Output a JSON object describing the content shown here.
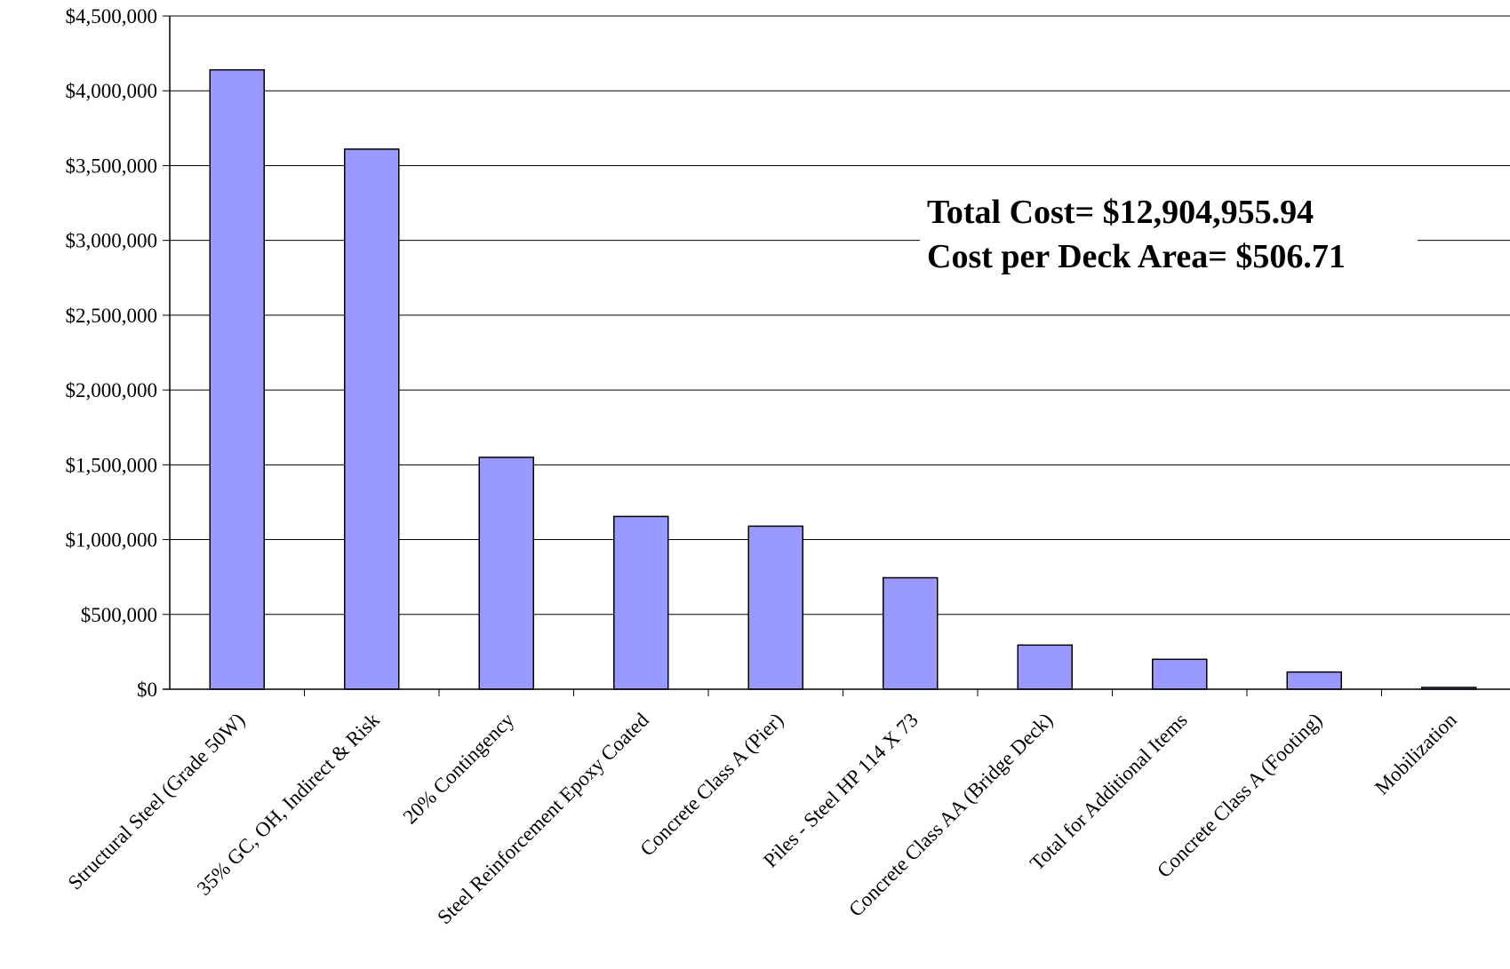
{
  "chart_data": {
    "type": "bar",
    "title": "",
    "xlabel": "",
    "ylabel": "",
    "categories": [
      "Structural Steel (Grade 50W)",
      "35% GC, OH, Indirect & Risk",
      "20% Contingency",
      "Steel Reinforcement Epoxy Coated",
      "Concrete Class A (Pier)",
      "Piles - Steel HP 114 X 73",
      "Concrete Class AA (Bridge Deck)",
      "Total for Additional Items",
      "Concrete Class A (Footing)",
      "Mobilization"
    ],
    "values": [
      4140000,
      3610000,
      1550000,
      1155000,
      1090000,
      745000,
      295000,
      200000,
      115000,
      12000
    ],
    "ylim": [
      0,
      4500000
    ],
    "y_ticks": [
      "$0",
      "$500,000",
      "$1,000,000",
      "$1,500,000",
      "$2,000,000",
      "$2,500,000",
      "$3,000,000",
      "$3,500,000",
      "$4,000,000",
      "$4,500,000"
    ],
    "grid": true,
    "legend": "none",
    "bar_color": "#9999FF",
    "bar_edge_color": "#000000",
    "annotations": [
      "Total Cost= $12,904,955.94",
      "Cost per Deck Area= $506.71"
    ]
  }
}
